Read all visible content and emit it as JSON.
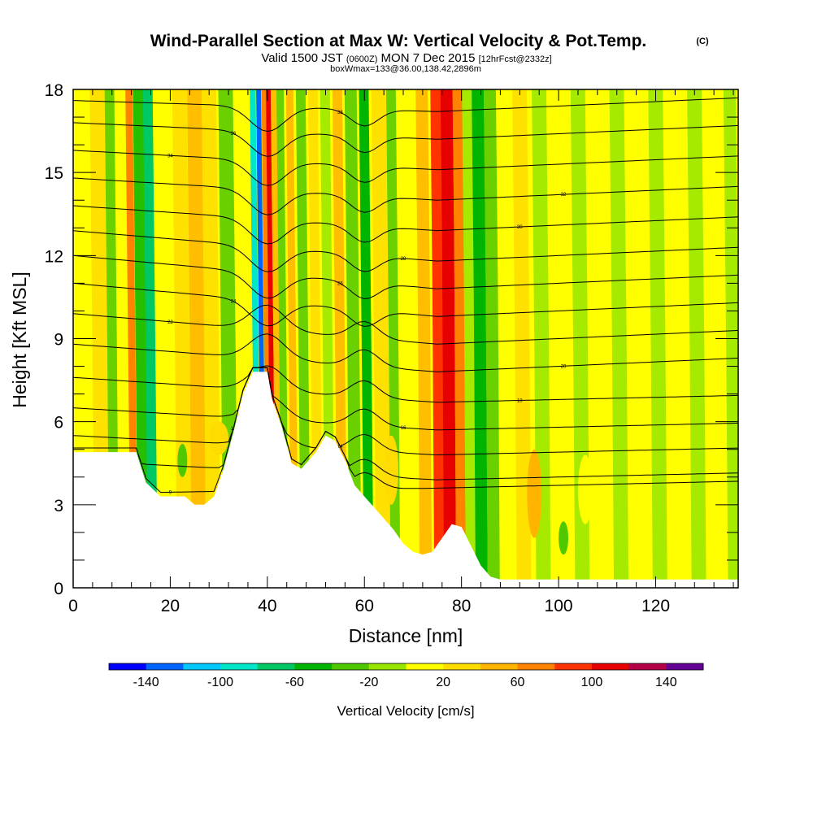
{
  "header": {
    "title": "Wind-Parallel Section at Max W: Vertical Velocity & Pot.Temp.",
    "title_mark": "(C)",
    "valid_a": "Valid 1500 JST",
    "valid_b": "(0600Z)",
    "valid_c": "MON 7 Dec 2015",
    "valid_d": "[12hrFcst@2332z]",
    "boxinfo": "boxWmax=133@36.00,138.42,2896m"
  },
  "chart_data": {
    "type": "heatmap",
    "xlabel": "Distance [nm]",
    "ylabel": "Height [Kft MSL]",
    "xlim": [
      0,
      137
    ],
    "ylim": [
      0,
      18
    ],
    "x_ticks": [
      "0",
      "20",
      "40",
      "60",
      "80",
      "100",
      "120"
    ],
    "y_ticks": [
      "0",
      "3",
      "6",
      "9",
      "12",
      "15",
      "18"
    ],
    "colorbar": {
      "label": "Vertical Velocity [cm/s]",
      "tick_labels": [
        "-140",
        "-100",
        "-60",
        "-20",
        "20",
        "60",
        "100",
        "140"
      ],
      "bounds": [
        -160,
        -140,
        -120,
        -100,
        -80,
        -60,
        -40,
        -20,
        0,
        20,
        40,
        60,
        80,
        100,
        120,
        140,
        160
      ],
      "colors": [
        "#0000ff",
        "#0064ff",
        "#00c8ff",
        "#00e6c8",
        "#00c864",
        "#00b400",
        "#50c800",
        "#96e600",
        "#ffff00",
        "#ffdc00",
        "#ffb400",
        "#ff8200",
        "#ff3200",
        "#e60000",
        "#b40046",
        "#640096"
      ]
    },
    "terrain": {
      "x": [
        0,
        13,
        15,
        18,
        20,
        23,
        25,
        27,
        29,
        31,
        33,
        35,
        37,
        38,
        40,
        41,
        43,
        45,
        47,
        50,
        52,
        54,
        56,
        58,
        60,
        63,
        66,
        68,
        70,
        72,
        74,
        76,
        78,
        80,
        82,
        84,
        86,
        88,
        90,
        137
      ],
      "y": [
        4.9,
        4.9,
        3.8,
        3.3,
        3.3,
        3.3,
        3.0,
        3.0,
        3.3,
        4.3,
        5.6,
        7.0,
        7.8,
        7.8,
        7.8,
        6.8,
        5.8,
        4.5,
        4.3,
        4.9,
        5.5,
        5.3,
        4.6,
        3.7,
        3.3,
        2.7,
        2.1,
        1.6,
        1.3,
        1.2,
        1.3,
        1.8,
        2.3,
        2.2,
        1.5,
        0.8,
        0.4,
        0.3,
        0.3,
        0.3
      ]
    },
    "bands": [
      {
        "x": 1,
        "w": 2.5,
        "ybase": 7,
        "w_cms": 10
      },
      {
        "x": 4,
        "w": 3,
        "ybase": 8,
        "w_cms": 20
      },
      {
        "x": 7,
        "w": 2,
        "ybase": 9,
        "w_cms": -30
      },
      {
        "x": 11.5,
        "w": 1.5,
        "ybase": 5.5,
        "w_cms": 60
      },
      {
        "x": 13,
        "w": 2.5,
        "ybase": 6.5,
        "w_cms": -50
      },
      {
        "x": 15,
        "w": 2,
        "ybase": 7.5,
        "w_cms": -70
      },
      {
        "x": 17.5,
        "w": 3,
        "ybase": 7.5,
        "w_cms": 10
      },
      {
        "x": 21,
        "w": 3,
        "ybase": 8,
        "w_cms": 30
      },
      {
        "x": 24,
        "w": 3,
        "ybase": 9,
        "w_cms": 50
      },
      {
        "x": 27,
        "w": 3,
        "ybase": 9,
        "w_cms": 20
      },
      {
        "x": 30.5,
        "w": 3,
        "ybase": 8,
        "w_cms": -30
      },
      {
        "x": 34,
        "w": 3,
        "ybase": 9,
        "w_cms": 10
      },
      {
        "x": 37,
        "w": 1.2,
        "ybase": 8,
        "w_cms": -90
      },
      {
        "x": 38.3,
        "w": 1.0,
        "ybase": 8,
        "w_cms": -140
      },
      {
        "x": 39.4,
        "w": 0.9,
        "ybase": 8,
        "w_cms": 60
      },
      {
        "x": 40.3,
        "w": 1.0,
        "ybase": 8,
        "w_cms": 110
      },
      {
        "x": 41.3,
        "w": 1.2,
        "ybase": 8,
        "w_cms": 50
      },
      {
        "x": 42.5,
        "w": 1.5,
        "ybase": 7.5,
        "w_cms": -30
      },
      {
        "x": 44.5,
        "w": 1.5,
        "ybase": 7,
        "w_cms": 40
      },
      {
        "x": 46.5,
        "w": 2,
        "ybase": 7.5,
        "w_cms": -40
      },
      {
        "x": 49,
        "w": 2,
        "ybase": 7.5,
        "w_cms": 30
      },
      {
        "x": 51.5,
        "w": 2,
        "ybase": 7.5,
        "w_cms": -20
      },
      {
        "x": 54,
        "w": 2,
        "ybase": 8,
        "w_cms": 40
      },
      {
        "x": 56.5,
        "w": 2.5,
        "ybase": 8,
        "w_cms": -30
      },
      {
        "x": 59.5,
        "w": 2,
        "ybase": 7.5,
        "w_cms": -60
      },
      {
        "x": 62,
        "w": 3,
        "ybase": 8,
        "w_cms": 20
      },
      {
        "x": 65,
        "w": 2,
        "ybase": 9,
        "w_cms": -30
      },
      {
        "x": 67.5,
        "w": 3,
        "ybase": 9,
        "w_cms": 10
      },
      {
        "x": 71,
        "w": 2.5,
        "ybase": 10.5,
        "w_cms": 40
      },
      {
        "x": 74,
        "w": 2.5,
        "ybase": 11,
        "w_cms": 80
      },
      {
        "x": 76,
        "w": 2.5,
        "ybase": 12.5,
        "w_cms": 110
      },
      {
        "x": 78.5,
        "w": 2,
        "ybase": 12,
        "w_cms": 60
      },
      {
        "x": 80.5,
        "w": 2,
        "ybase": 11,
        "w_cms": -20
      },
      {
        "x": 82.5,
        "w": 2.5,
        "ybase": 11,
        "w_cms": -60
      },
      {
        "x": 85,
        "w": 2.5,
        "ybase": 11,
        "w_cms": -30
      },
      {
        "x": 88,
        "w": 3,
        "ybase": 10,
        "w_cms": 10
      },
      {
        "x": 91,
        "w": 3,
        "ybase": 9,
        "w_cms": 30
      },
      {
        "x": 95,
        "w": 3,
        "ybase": 9,
        "w_cms": -20
      },
      {
        "x": 99,
        "w": 3,
        "ybase": 9,
        "w_cms": 10
      },
      {
        "x": 103,
        "w": 3,
        "ybase": 9,
        "w_cms": -20
      },
      {
        "x": 107,
        "w": 3,
        "ybase": 9,
        "w_cms": 10
      },
      {
        "x": 111,
        "w": 3,
        "ybase": 9,
        "w_cms": -20
      },
      {
        "x": 115,
        "w": 3,
        "ybase": 9,
        "w_cms": 10
      },
      {
        "x": 119,
        "w": 3,
        "ybase": 9,
        "w_cms": -20
      },
      {
        "x": 123,
        "w": 3,
        "ybase": 9,
        "w_cms": 10
      },
      {
        "x": 127,
        "w": 3,
        "ybase": 9,
        "w_cms": -20
      },
      {
        "x": 131,
        "w": 3,
        "ybase": 9,
        "w_cms": 10
      },
      {
        "x": 134.5,
        "w": 2.5,
        "ybase": 9,
        "w_cms": -20
      }
    ],
    "blobs": [
      {
        "x": 93.5,
        "y": 1.8,
        "w": 3,
        "h": 3.2,
        "w_cms": 40
      },
      {
        "x": 104,
        "y": 2.3,
        "w": 3,
        "h": 2.5,
        "w_cms": 10
      },
      {
        "x": 28,
        "y": 4.8,
        "w": 4,
        "h": 1.2,
        "w_cms": 20
      },
      {
        "x": 21.5,
        "y": 4.0,
        "w": 2,
        "h": 1.2,
        "w_cms": -40
      },
      {
        "x": 64,
        "y": 3.0,
        "w": 3,
        "h": 2.5,
        "w_cms": 20
      },
      {
        "x": 100,
        "y": 1.2,
        "w": 2,
        "h": 1.2,
        "w_cms": -40
      }
    ],
    "theta_contours": [
      {
        "label": "9",
        "y0": 3.4,
        "knee": 3.6
      },
      {
        "label": "12",
        "y0": 4.6,
        "knee": 3.9
      },
      {
        "label": "14",
        "y0": 5.5,
        "knee": 4.8
      },
      {
        "label": "16",
        "y0": 6.5,
        "knee": 5.7
      },
      {
        "label": "18",
        "y0": 7.6,
        "knee": 6.7
      },
      {
        "label": "20",
        "y0": 8.8,
        "knee": 7.8
      },
      {
        "label": "22",
        "y0": 9.9,
        "knee": 8.8
      },
      {
        "label": "24",
        "y0": 11.0,
        "knee": 9.8
      },
      {
        "label": "26",
        "y0": 12.0,
        "knee": 10.8
      },
      {
        "label": "28",
        "y0": 12.9,
        "knee": 11.8
      },
      {
        "label": "30",
        "y0": 13.8,
        "knee": 12.9
      },
      {
        "label": "32",
        "y0": 14.8,
        "knee": 14.0
      },
      {
        "label": "34",
        "y0": 15.8,
        "knee": 15.1
      },
      {
        "label": "36",
        "y0": 16.8,
        "knee": 16.2
      },
      {
        "label": "38",
        "y0": 17.6,
        "knee": 17.2
      }
    ]
  }
}
